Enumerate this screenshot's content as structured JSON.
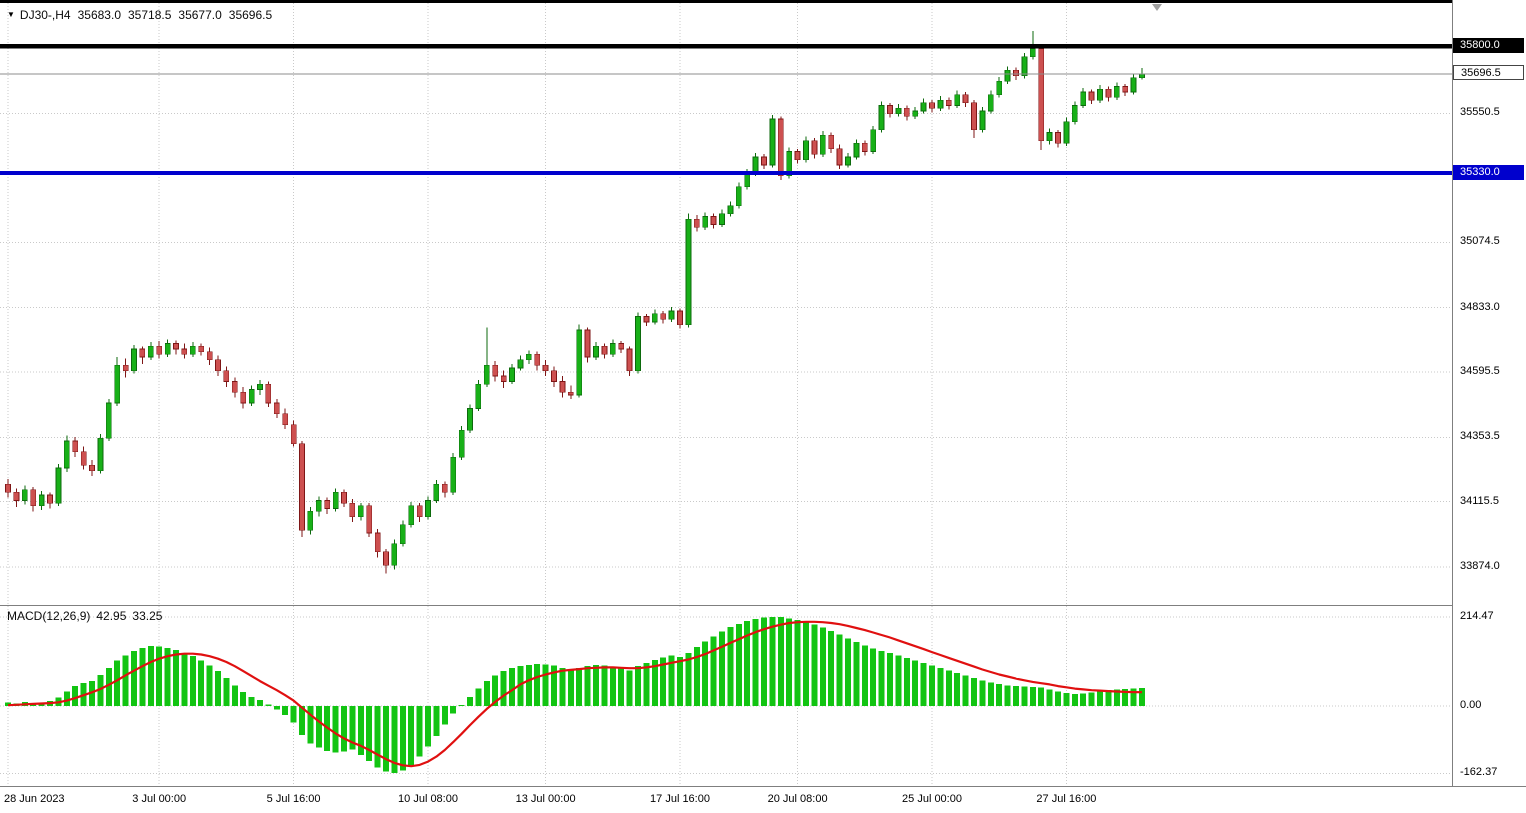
{
  "header": {
    "symbol_period": "DJ30-,H4",
    "open": "35683.0",
    "high": "35718.5",
    "low": "35677.0",
    "close": "35696.5"
  },
  "macd": {
    "name": "MACD(12,26,9)",
    "value_label": "42.95",
    "signal_label": "33.25"
  },
  "chart_data": {
    "type": "candlestick",
    "title": "DJ30-,H4",
    "timeframe": "H4",
    "x_axis": {
      "ticks": [
        {
          "label": "28 Jun 2023",
          "bar": 0
        },
        {
          "label": "3 Jul 00:00",
          "bar": 18
        },
        {
          "label": "5 Jul 16:00",
          "bar": 34
        },
        {
          "label": "10 Jul 08:00",
          "bar": 50
        },
        {
          "label": "13 Jul 00:00",
          "bar": 64
        },
        {
          "label": "17 Jul 16:00",
          "bar": 80
        },
        {
          "label": "20 Jul 08:00",
          "bar": 94
        },
        {
          "label": "25 Jul 00:00",
          "bar": 110
        },
        {
          "label": "27 Jul 16:00",
          "bar": 126
        }
      ]
    },
    "y_axis": {
      "ticks": [
        {
          "label": "35550.5",
          "price": 35550.5
        },
        {
          "label": "35074.5",
          "price": 35074.5
        },
        {
          "label": "34833.0",
          "price": 34833.0
        },
        {
          "label": "34595.5",
          "price": 34595.5
        },
        {
          "label": "34353.5",
          "price": 34353.5
        },
        {
          "label": "34115.5",
          "price": 34115.5
        },
        {
          "label": "33874.0",
          "price": 33874.0
        }
      ]
    },
    "levels": [
      {
        "label": "35800.0",
        "price": 35800.0,
        "color": "#000000",
        "thickness": 4.5
      },
      {
        "label": "35330.0",
        "price": 35330.0,
        "color": "#0000cd",
        "thickness": 4
      }
    ],
    "current_price": {
      "label": "35696.5",
      "value": 35696.5,
      "line_color": "#8c8c8c"
    },
    "colors": {
      "bull": "#18b018",
      "bull_border": "#0c6a0c",
      "bear": "#cd5050",
      "bear_border": "#7e1616",
      "histogram": "#12c412",
      "signal": "#e01010",
      "grid": "#c9c9c9"
    },
    "candles": [
      [
        34180,
        34200,
        34130,
        34150
      ],
      [
        34150,
        34165,
        34095,
        34120
      ],
      [
        34120,
        34175,
        34105,
        34160
      ],
      [
        34160,
        34170,
        34080,
        34100
      ],
      [
        34100,
        34155,
        34085,
        34140
      ],
      [
        34140,
        34150,
        34090,
        34110
      ],
      [
        34110,
        34255,
        34100,
        34240
      ],
      [
        34240,
        34360,
        34225,
        34340
      ],
      [
        34340,
        34355,
        34280,
        34300
      ],
      [
        34300,
        34320,
        34235,
        34250
      ],
      [
        34250,
        34270,
        34210,
        34230
      ],
      [
        34230,
        34365,
        34220,
        34350
      ],
      [
        34350,
        34495,
        34340,
        34480
      ],
      [
        34480,
        34650,
        34470,
        34620
      ],
      [
        34620,
        34645,
        34575,
        34600
      ],
      [
        34600,
        34695,
        34590,
        34680
      ],
      [
        34680,
        34690,
        34625,
        34650
      ],
      [
        34650,
        34705,
        34640,
        34690
      ],
      [
        34690,
        34710,
        34645,
        34660
      ],
      [
        34660,
        34715,
        34650,
        34700
      ],
      [
        34700,
        34712,
        34660,
        34680
      ],
      [
        34680,
        34700,
        34645,
        34660
      ],
      [
        34660,
        34705,
        34650,
        34690
      ],
      [
        34690,
        34700,
        34655,
        34670
      ],
      [
        34670,
        34685,
        34620,
        34640
      ],
      [
        34640,
        34655,
        34580,
        34600
      ],
      [
        34600,
        34615,
        34540,
        34560
      ],
      [
        34560,
        34575,
        34500,
        34520
      ],
      [
        34520,
        34540,
        34460,
        34480
      ],
      [
        34480,
        34545,
        34470,
        34530
      ],
      [
        34530,
        34565,
        34510,
        34550
      ],
      [
        34550,
        34560,
        34465,
        34480
      ],
      [
        34480,
        34495,
        34425,
        34440
      ],
      [
        34440,
        34460,
        34385,
        34400
      ],
      [
        34400,
        34415,
        34320,
        34330
      ],
      [
        34330,
        34340,
        33985,
        34010
      ],
      [
        34010,
        34095,
        33995,
        34080
      ],
      [
        34080,
        34135,
        34060,
        34120
      ],
      [
        34120,
        34130,
        34070,
        34090
      ],
      [
        34090,
        34165,
        34080,
        34150
      ],
      [
        34150,
        34160,
        34095,
        34110
      ],
      [
        34110,
        34125,
        34040,
        34060
      ],
      [
        34060,
        34110,
        34045,
        34100
      ],
      [
        34100,
        34110,
        33985,
        34000
      ],
      [
        34000,
        34015,
        33910,
        33930
      ],
      [
        33930,
        33940,
        33850,
        33880
      ],
      [
        33880,
        33975,
        33865,
        33960
      ],
      [
        33960,
        34045,
        33950,
        34030
      ],
      [
        34030,
        34115,
        34020,
        34100
      ],
      [
        34100,
        34110,
        34040,
        34060
      ],
      [
        34060,
        34135,
        34050,
        34120
      ],
      [
        34120,
        34195,
        34110,
        34180
      ],
      [
        34180,
        34190,
        34130,
        34150
      ],
      [
        34150,
        34295,
        34140,
        34280
      ],
      [
        34280,
        34395,
        34270,
        34380
      ],
      [
        34380,
        34475,
        34370,
        34460
      ],
      [
        34460,
        34565,
        34450,
        34550
      ],
      [
        34550,
        34760,
        34540,
        34620
      ],
      [
        34620,
        34635,
        34560,
        34580
      ],
      [
        34580,
        34600,
        34535,
        34560
      ],
      [
        34560,
        34625,
        34550,
        34610
      ],
      [
        34610,
        34655,
        34600,
        34640
      ],
      [
        34640,
        34675,
        34625,
        34660
      ],
      [
        34660,
        34670,
        34600,
        34620
      ],
      [
        34620,
        34640,
        34580,
        34600
      ],
      [
        34600,
        34615,
        34540,
        34560
      ],
      [
        34560,
        34580,
        34500,
        34520
      ],
      [
        34520,
        34545,
        34495,
        34510
      ],
      [
        34510,
        34770,
        34500,
        34750
      ],
      [
        34750,
        34760,
        34630,
        34650
      ],
      [
        34650,
        34705,
        34640,
        34690
      ],
      [
        34690,
        34700,
        34645,
        34660
      ],
      [
        34660,
        34715,
        34650,
        34700
      ],
      [
        34700,
        34710,
        34665,
        34680
      ],
      [
        34680,
        34690,
        34580,
        34600
      ],
      [
        34600,
        34815,
        34590,
        34800
      ],
      [
        34800,
        34810,
        34765,
        34780
      ],
      [
        34780,
        34825,
        34770,
        34810
      ],
      [
        34810,
        34820,
        34775,
        34790
      ],
      [
        34790,
        34835,
        34780,
        34820
      ],
      [
        34820,
        34830,
        34755,
        34770
      ],
      [
        34770,
        35180,
        34760,
        35160
      ],
      [
        35160,
        35175,
        35115,
        35130
      ],
      [
        35130,
        35185,
        35120,
        35170
      ],
      [
        35170,
        35180,
        35125,
        35140
      ],
      [
        35140,
        35195,
        35130,
        35180
      ],
      [
        35180,
        35225,
        35170,
        35210
      ],
      [
        35210,
        35295,
        35200,
        35280
      ],
      [
        35280,
        35345,
        35270,
        35330
      ],
      [
        35330,
        35405,
        35320,
        35390
      ],
      [
        35390,
        35400,
        35345,
        35360
      ],
      [
        35360,
        35545,
        35350,
        35530
      ],
      [
        35530,
        35540,
        35305,
        35320
      ],
      [
        35320,
        35425,
        35310,
        35410
      ],
      [
        35410,
        35420,
        35365,
        35380
      ],
      [
        35380,
        35465,
        35370,
        35450
      ],
      [
        35450,
        35460,
        35385,
        35400
      ],
      [
        35400,
        35485,
        35390,
        35470
      ],
      [
        35470,
        35480,
        35405,
        35420
      ],
      [
        35420,
        35435,
        35345,
        35360
      ],
      [
        35360,
        35405,
        35350,
        35390
      ],
      [
        35390,
        35455,
        35380,
        35440
      ],
      [
        35440,
        35450,
        35395,
        35410
      ],
      [
        35410,
        35505,
        35400,
        35490
      ],
      [
        35490,
        35595,
        35480,
        35580
      ],
      [
        35580,
        35590,
        35535,
        35550
      ],
      [
        35550,
        35585,
        35540,
        35570
      ],
      [
        35570,
        35580,
        35525,
        35540
      ],
      [
        35540,
        35575,
        35530,
        35560
      ],
      [
        35560,
        35605,
        35550,
        35590
      ],
      [
        35590,
        35600,
        35555,
        35570
      ],
      [
        35570,
        35615,
        35560,
        35600
      ],
      [
        35600,
        35610,
        35565,
        35580
      ],
      [
        35580,
        35635,
        35570,
        35620
      ],
      [
        35620,
        35630,
        35575,
        35590
      ],
      [
        35590,
        35600,
        35460,
        35490
      ],
      [
        35490,
        35575,
        35480,
        35560
      ],
      [
        35560,
        35635,
        35550,
        35620
      ],
      [
        35620,
        35685,
        35610,
        35670
      ],
      [
        35670,
        35725,
        35660,
        35710
      ],
      [
        35710,
        35720,
        35675,
        35690
      ],
      [
        35690,
        35775,
        35680,
        35760
      ],
      [
        35760,
        35855,
        35750,
        35790
      ],
      [
        35790,
        35800,
        35415,
        35450
      ],
      [
        35450,
        35495,
        35435,
        35480
      ],
      [
        35480,
        35490,
        35425,
        35440
      ],
      [
        35440,
        35535,
        35430,
        35520
      ],
      [
        35520,
        35595,
        35510,
        35580
      ],
      [
        35580,
        35645,
        35570,
        35630
      ],
      [
        35630,
        35640,
        35585,
        35600
      ],
      [
        35600,
        35655,
        35590,
        35640
      ],
      [
        35640,
        35650,
        35595,
        35610
      ],
      [
        35610,
        35665,
        35600,
        35650
      ],
      [
        35650,
        35660,
        35615,
        35630
      ],
      [
        35630,
        35695,
        35620,
        35683
      ],
      [
        35683,
        35718.5,
        35677,
        35696.5
      ]
    ],
    "macd_panel": {
      "axis_ticks": [
        {
          "label": "214.47",
          "value": 214.47
        },
        {
          "label": "0.00",
          "value": 0
        },
        {
          "label": "-162.37",
          "value": -162.37
        }
      ],
      "histogram": [
        8,
        6,
        10,
        7,
        9,
        12,
        20,
        35,
        48,
        55,
        60,
        75,
        92,
        110,
        122,
        132,
        140,
        145,
        143,
        140,
        135,
        128,
        120,
        110,
        98,
        84,
        68,
        50,
        34,
        22,
        14,
        4,
        -8,
        -22,
        -40,
        -70,
        -90,
        -100,
        -108,
        -112,
        -110,
        -105,
        -118,
        -132,
        -148,
        -158,
        -162,
        -155,
        -142,
        -122,
        -98,
        -72,
        -45,
        -18,
        2,
        22,
        42,
        60,
        74,
        84,
        92,
        96,
        99,
        101,
        100,
        97,
        92,
        88,
        92,
        96,
        99,
        97,
        94,
        90,
        86,
        96,
        104,
        111,
        117,
        122,
        118,
        128,
        142,
        155,
        168,
        180,
        190,
        198,
        205,
        210,
        213,
        214.5,
        214,
        211,
        207,
        202,
        196,
        189,
        181,
        172,
        163,
        154,
        146,
        139,
        133,
        128,
        122,
        116,
        110,
        104,
        98,
        92,
        86,
        80,
        74,
        68,
        62,
        57,
        53,
        50,
        48,
        47,
        46,
        44,
        40,
        35,
        31,
        29,
        30,
        33,
        36,
        38,
        40,
        41,
        42,
        42.95
      ],
      "signal": [
        2,
        3,
        4,
        5,
        6,
        7,
        9,
        13,
        19,
        26,
        33,
        41,
        51,
        62,
        74,
        85,
        96,
        106,
        114,
        120,
        124,
        126,
        126,
        124,
        120,
        114,
        106,
        96,
        84,
        72,
        60,
        49,
        38,
        26,
        13,
        -4,
        -21,
        -37,
        -52,
        -66,
        -78,
        -88,
        -96,
        -106,
        -117,
        -128,
        -137,
        -143,
        -145,
        -142,
        -134,
        -122,
        -106,
        -87,
        -67,
        -46,
        -26,
        -7,
        10,
        25,
        38,
        52,
        62,
        70,
        76,
        81,
        85,
        87,
        89,
        91,
        92,
        93,
        93,
        92,
        91,
        91,
        93,
        96,
        100,
        104,
        108,
        112,
        118,
        125,
        134,
        143,
        152,
        161,
        170,
        178,
        185,
        191,
        196,
        200,
        202,
        203,
        203,
        202,
        200,
        197,
        193,
        188,
        183,
        177,
        171,
        165,
        158,
        151,
        144,
        137,
        130,
        123,
        116,
        109,
        102,
        95,
        88,
        82,
        76,
        71,
        66,
        62,
        58,
        55,
        52,
        48,
        45,
        42,
        40,
        38,
        37,
        36,
        35,
        34,
        33.5,
        33.25
      ]
    }
  }
}
